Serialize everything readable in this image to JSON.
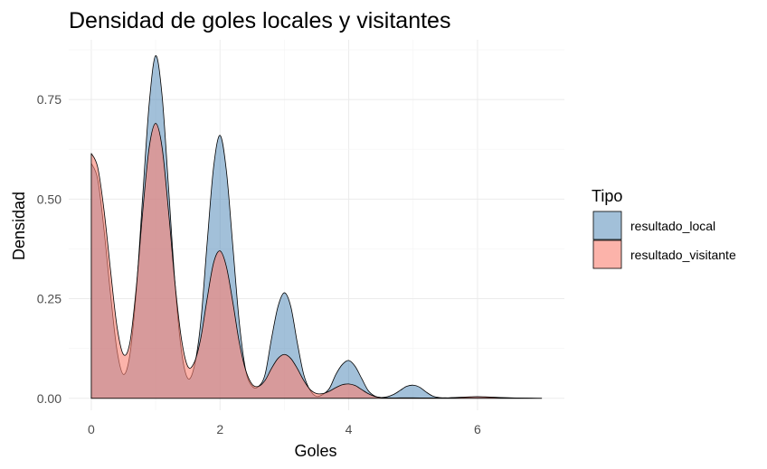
{
  "chart_data": {
    "type": "area",
    "title": "Densidad de goles locales y visitantes",
    "xlabel": "Goles",
    "ylabel": "Densidad",
    "xlim": [
      -0.35,
      7.35
    ],
    "ylim": [
      -0.03,
      0.9
    ],
    "x_ticks": [
      0,
      2,
      4,
      6
    ],
    "y_ticks": [
      0.0,
      0.25,
      0.5,
      0.75
    ],
    "y_tick_labels": [
      "0.00",
      "0.25",
      "0.50",
      "0.75"
    ],
    "grid": true,
    "legend": {
      "title": "Tipo",
      "position": "right"
    },
    "series": [
      {
        "name": "resultado_local",
        "color": "#4682B4",
        "opacity": 0.5,
        "x": [
          0,
          0.1,
          0.2,
          0.3,
          0.4,
          0.5,
          0.6,
          0.7,
          0.8,
          0.9,
          1.0,
          1.1,
          1.2,
          1.3,
          1.4,
          1.5,
          1.6,
          1.7,
          1.8,
          1.9,
          2.0,
          2.1,
          2.2,
          2.3,
          2.4,
          2.5,
          2.6,
          2.7,
          2.8,
          2.9,
          3.0,
          3.1,
          3.2,
          3.3,
          3.4,
          3.5,
          3.6,
          3.7,
          3.8,
          3.9,
          4.0,
          4.1,
          4.2,
          4.3,
          4.4,
          4.5,
          4.6,
          4.7,
          4.8,
          4.9,
          5.0,
          5.1,
          5.2,
          5.3,
          5.4,
          5.5,
          5.6,
          5.7,
          5.8,
          5.9,
          6.0,
          6.2,
          6.5,
          7.0
        ],
        "y": [
          0.59,
          0.55,
          0.42,
          0.26,
          0.12,
          0.06,
          0.11,
          0.27,
          0.51,
          0.74,
          0.86,
          0.76,
          0.53,
          0.29,
          0.12,
          0.05,
          0.08,
          0.19,
          0.39,
          0.58,
          0.66,
          0.57,
          0.38,
          0.19,
          0.07,
          0.03,
          0.03,
          0.06,
          0.15,
          0.23,
          0.265,
          0.23,
          0.14,
          0.06,
          0.02,
          0.005,
          0.01,
          0.025,
          0.06,
          0.085,
          0.095,
          0.08,
          0.05,
          0.02,
          0.006,
          0.002,
          0.004,
          0.01,
          0.02,
          0.03,
          0.033,
          0.028,
          0.016,
          0.006,
          0.002,
          0.001,
          0.001,
          0.001,
          0.002,
          0.003,
          0.004,
          0.002,
          0.001,
          0.0
        ]
      },
      {
        "name": "resultado_visitante",
        "color": "#FA8072",
        "opacity": 0.6,
        "x": [
          0,
          0.1,
          0.2,
          0.3,
          0.4,
          0.5,
          0.6,
          0.7,
          0.8,
          0.9,
          1.0,
          1.1,
          1.2,
          1.3,
          1.4,
          1.5,
          1.6,
          1.7,
          1.8,
          1.9,
          2.0,
          2.1,
          2.2,
          2.3,
          2.4,
          2.5,
          2.6,
          2.7,
          2.8,
          2.9,
          3.0,
          3.1,
          3.2,
          3.3,
          3.4,
          3.5,
          3.6,
          3.7,
          3.8,
          3.9,
          4.0,
          4.1,
          4.2,
          4.3,
          4.4,
          4.5,
          4.6,
          4.8,
          5.0,
          5.5,
          6.0,
          6.5,
          7.0
        ],
        "y": [
          0.615,
          0.58,
          0.47,
          0.32,
          0.18,
          0.11,
          0.14,
          0.28,
          0.47,
          0.63,
          0.69,
          0.63,
          0.47,
          0.29,
          0.15,
          0.08,
          0.09,
          0.15,
          0.25,
          0.34,
          0.37,
          0.33,
          0.24,
          0.14,
          0.07,
          0.035,
          0.03,
          0.045,
          0.075,
          0.1,
          0.11,
          0.1,
          0.075,
          0.045,
          0.022,
          0.012,
          0.012,
          0.018,
          0.027,
          0.034,
          0.036,
          0.032,
          0.022,
          0.012,
          0.005,
          0.002,
          0.001,
          0.001,
          0.001,
          0.001,
          0.004,
          0.001,
          0.0
        ]
      }
    ]
  }
}
